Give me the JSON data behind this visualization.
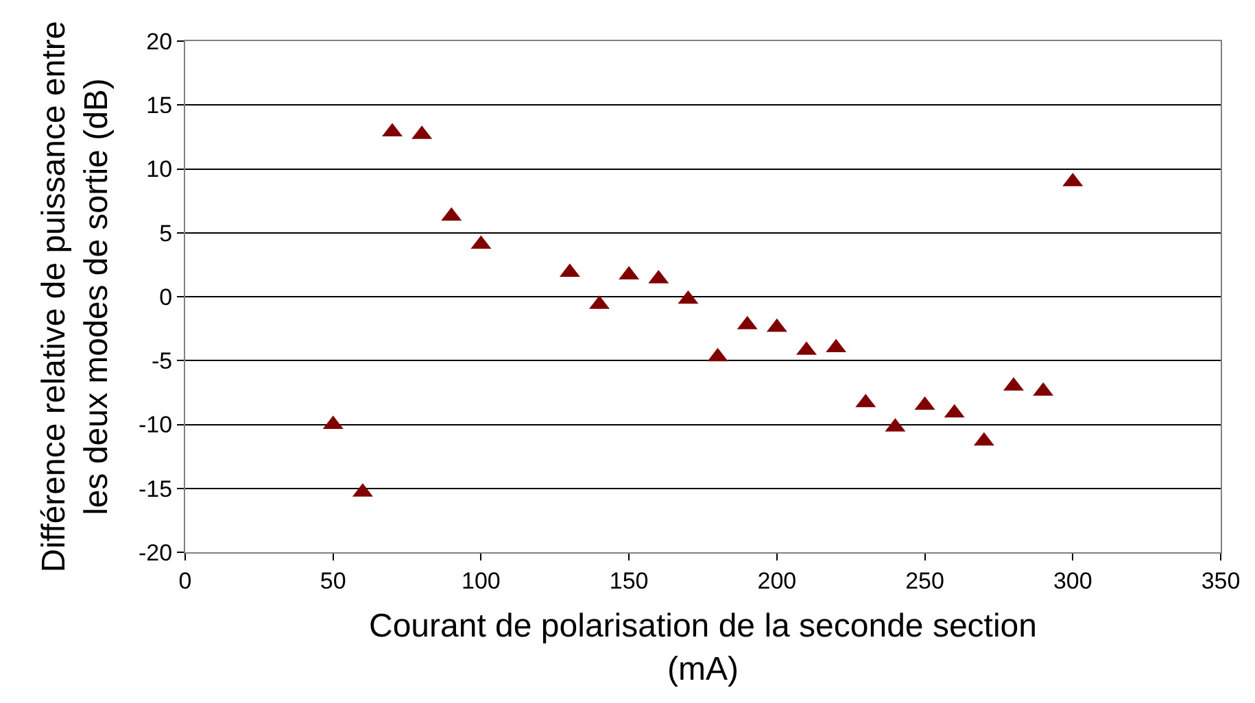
{
  "chart_data": {
    "type": "scatter",
    "xlabel": "Courant de polarisation de la seconde section (mA)",
    "ylabel": "Différence relative de puissance entre les deux modes de sortie (dB)",
    "x": [
      50,
      60,
      70,
      80,
      90,
      100,
      130,
      140,
      150,
      160,
      170,
      180,
      190,
      200,
      210,
      220,
      230,
      240,
      250,
      260,
      270,
      280,
      290,
      300
    ],
    "series": [
      {
        "color": "#800000",
        "values": [
          -10,
          -15.3,
          12.9,
          12.7,
          6.3,
          4.1,
          1.9,
          -0.6,
          1.7,
          1.4,
          -0.2,
          -4.7,
          -2.2,
          -2.4,
          -4.2,
          -4.0,
          -8.3,
          -10.2,
          -8.5,
          -9.1,
          -11.3,
          -7.0,
          -7.4,
          9.0
        ]
      }
    ],
    "xlim": [
      0,
      350
    ],
    "xticks": [
      0,
      50,
      100,
      150,
      200,
      250,
      300,
      350
    ],
    "ylim": [
      -20,
      20
    ],
    "yticks": [
      -20,
      -15,
      -10,
      -5,
      0,
      5,
      10,
      15,
      20
    ],
    "grid": "y",
    "legend": false,
    "marker": "triangle"
  }
}
